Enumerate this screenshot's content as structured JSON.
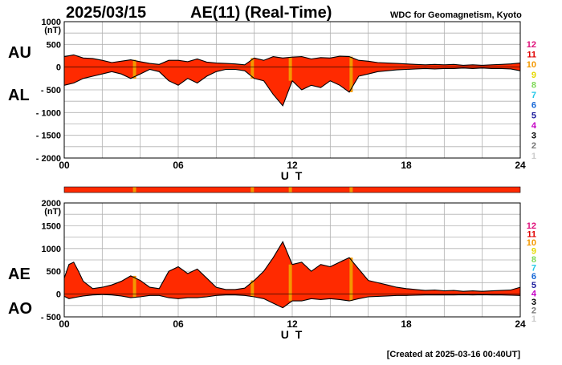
{
  "header": {
    "date": "2025/03/15",
    "title": "AE(11) (Real-Time)",
    "source": "WDC for Geomagnetism, Kyoto"
  },
  "footer": {
    "created": "[Created at 2025-03-16 00:40UT]"
  },
  "station_scale": {
    "labels": [
      "12",
      "11",
      "10",
      "9",
      "8",
      "7",
      "6",
      "5",
      "4",
      "3",
      "2",
      "1"
    ],
    "colors": [
      "#e0107a",
      "#e00000",
      "#f39800",
      "#e5d800",
      "#7ed957",
      "#22c7e8",
      "#1466d6",
      "#1c1c9c",
      "#c400c4",
      "#000000",
      "#777777",
      "#cccccc"
    ]
  },
  "chart_data": [
    {
      "type": "area",
      "panel": "top",
      "series_labels": [
        "AU",
        "AL"
      ],
      "ylabel": "(nT)",
      "ylim": [
        -2000,
        1000
      ],
      "yticks": [
        1000,
        500,
        0,
        -500,
        -1000,
        -1500,
        -2000
      ],
      "ytick_labels": [
        "1000",
        "500",
        "0",
        "- 500",
        "- 1000",
        "- 1500",
        "- 2000"
      ],
      "xlim": [
        0,
        24
      ],
      "xticks": [
        "00",
        "06",
        "12",
        "18",
        "24"
      ],
      "xlabel": "U T",
      "fill_color": "#ff2a00",
      "marker_color": "#f39800",
      "marker_hours": [
        3.7,
        9.9,
        11.9,
        15.1
      ],
      "series": [
        {
          "name": "AU",
          "x": [
            0,
            0.5,
            1,
            1.5,
            2,
            2.5,
            3,
            3.5,
            4,
            4.5,
            5,
            5.5,
            6,
            6.5,
            7,
            7.5,
            8,
            8.5,
            9,
            9.5,
            10,
            10.5,
            11,
            11.5,
            12,
            12.5,
            13,
            13.5,
            14,
            14.5,
            15,
            15.5,
            16,
            16.5,
            17,
            17.5,
            18,
            18.5,
            19,
            19.5,
            20,
            20.5,
            21,
            21.5,
            22,
            22.5,
            23,
            23.5,
            24
          ],
          "values": [
            230,
            270,
            200,
            190,
            150,
            100,
            130,
            160,
            120,
            80,
            60,
            150,
            150,
            120,
            180,
            110,
            90,
            80,
            70,
            50,
            200,
            150,
            230,
            200,
            220,
            230,
            180,
            210,
            200,
            240,
            230,
            150,
            130,
            100,
            90,
            80,
            70,
            60,
            50,
            60,
            50,
            60,
            40,
            50,
            40,
            50,
            60,
            70,
            90
          ]
        },
        {
          "name": "AL",
          "x": [
            0,
            0.5,
            1,
            1.5,
            2,
            2.5,
            3,
            3.5,
            4,
            4.5,
            5,
            5.5,
            6,
            6.5,
            7,
            7.5,
            8,
            8.5,
            9,
            9.5,
            10,
            10.5,
            11,
            11.5,
            12,
            12.5,
            13,
            13.5,
            14,
            14.5,
            15,
            15.5,
            16,
            16.5,
            17,
            17.5,
            18,
            18.5,
            19,
            19.5,
            20,
            20.5,
            21,
            21.5,
            22,
            22.5,
            23,
            23.5,
            24
          ],
          "values": [
            -400,
            -350,
            -250,
            -200,
            -150,
            -100,
            -150,
            -250,
            -150,
            -50,
            -100,
            -300,
            -400,
            -250,
            -350,
            -200,
            -100,
            -50,
            -50,
            -80,
            -250,
            -300,
            -600,
            -850,
            -300,
            -500,
            -400,
            -450,
            -300,
            -400,
            -550,
            -200,
            -150,
            -100,
            -80,
            -60,
            -50,
            -40,
            -30,
            -40,
            -30,
            -30,
            -20,
            -30,
            -20,
            -30,
            -30,
            -40,
            -80
          ]
        }
      ]
    },
    {
      "type": "area",
      "panel": "bottom",
      "series_labels": [
        "AE",
        "AO"
      ],
      "ylabel": "(nT)",
      "ylim": [
        -500,
        2000
      ],
      "yticks": [
        2000,
        1500,
        1000,
        500,
        0,
        -500
      ],
      "ytick_labels": [
        "2000",
        "1500",
        "1000",
        "500",
        "0",
        "- 500"
      ],
      "xlim": [
        0,
        24
      ],
      "xticks": [
        "00",
        "06",
        "12",
        "18",
        "24"
      ],
      "xlabel": "U T",
      "fill_color": "#ff2a00",
      "marker_color": "#f39800",
      "marker_hours": [
        3.7,
        9.9,
        11.9,
        15.1
      ],
      "series": [
        {
          "name": "AE",
          "x": [
            0,
            0.25,
            0.5,
            0.75,
            1,
            1.5,
            2,
            2.5,
            3,
            3.5,
            4,
            4.5,
            5,
            5.5,
            6,
            6.5,
            7,
            7.5,
            8,
            8.5,
            9,
            9.5,
            10,
            10.5,
            11,
            11.5,
            12,
            12.5,
            13,
            13.5,
            14,
            14.5,
            15,
            15.5,
            16,
            16.5,
            17,
            17.5,
            18,
            18.5,
            19,
            19.5,
            20,
            20.5,
            21,
            21.5,
            22,
            22.5,
            23,
            23.5,
            24
          ],
          "values": [
            350,
            650,
            700,
            500,
            280,
            120,
            150,
            200,
            280,
            400,
            300,
            150,
            120,
            500,
            600,
            450,
            550,
            350,
            150,
            100,
            100,
            130,
            300,
            500,
            800,
            1150,
            650,
            700,
            500,
            650,
            600,
            700,
            800,
            550,
            300,
            250,
            200,
            150,
            120,
            100,
            80,
            90,
            70,
            80,
            60,
            70,
            60,
            70,
            80,
            90,
            150
          ]
        },
        {
          "name": "AO",
          "x": [
            0,
            0.25,
            0.5,
            0.75,
            1,
            1.5,
            2,
            2.5,
            3,
            3.5,
            4,
            4.5,
            5,
            5.5,
            6,
            6.5,
            7,
            7.5,
            8,
            8.5,
            9,
            9.5,
            10,
            10.5,
            11,
            11.5,
            12,
            12.5,
            13,
            13.5,
            14,
            14.5,
            15,
            15.5,
            16,
            16.5,
            17,
            17.5,
            18,
            18.5,
            19,
            19.5,
            20,
            20.5,
            21,
            21.5,
            22,
            22.5,
            23,
            23.5,
            24
          ],
          "values": [
            -50,
            -100,
            -80,
            -60,
            -40,
            -20,
            -10,
            -20,
            -40,
            -80,
            -60,
            -30,
            -30,
            -80,
            -100,
            -80,
            -80,
            -60,
            -30,
            -20,
            -20,
            -30,
            -60,
            -100,
            -200,
            -300,
            -150,
            -150,
            -100,
            -120,
            -100,
            -120,
            -150,
            -100,
            -60,
            -50,
            -40,
            -30,
            -30,
            -25,
            -20,
            -20,
            -20,
            -20,
            -15,
            -20,
            -15,
            -20,
            -20,
            -25,
            -30
          ]
        }
      ]
    }
  ]
}
